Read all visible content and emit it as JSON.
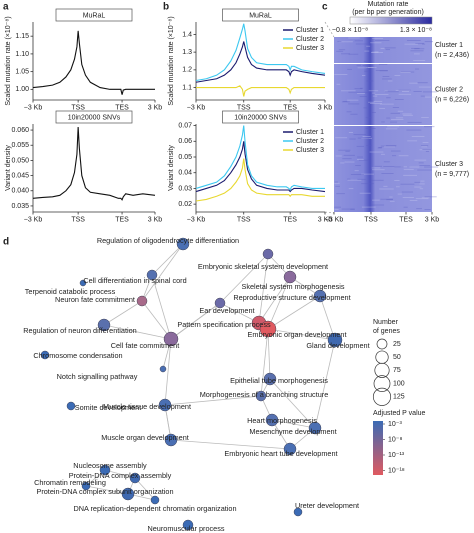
{
  "panel_labels": [
    "a",
    "b",
    "c",
    "d"
  ],
  "chart_data": [
    {
      "type": "line",
      "title": "MuRaL",
      "ylabel": "Scaled mutation rate (×10⁻⁸)",
      "x": [
        0,
        8,
        16,
        22,
        27,
        31,
        34,
        36,
        37,
        38,
        40,
        43,
        47,
        55,
        63,
        70,
        72,
        73,
        74,
        76,
        82,
        90,
        100
      ],
      "xlim": [
        0,
        100
      ],
      "xticks": [
        {
          "value": 0,
          "label": "−3 Kb"
        },
        {
          "value": 37,
          "label": "TSS"
        },
        {
          "value": 73,
          "label": "TES"
        },
        {
          "value": 100,
          "label": "3 Kb"
        }
      ],
      "ylim": [
        0.97,
        1.19
      ],
      "yticks": [
        {
          "value": 1,
          "label": "1.00"
        },
        1.05,
        {
          "value": 1.1,
          "label": "1.10"
        },
        1.15
      ],
      "series": [
        {
          "color": "#111111",
          "values": [
            1.005,
            1.008,
            1.012,
            1.02,
            1.035,
            1.055,
            1.085,
            1.12,
            1.165,
            1.13,
            1.07,
            1.04,
            1.02,
            1.005,
            1.0,
            1.0,
            1.0,
            0.985,
            0.998,
            1.0,
            1.0,
            1.0,
            1.0
          ]
        }
      ]
    },
    {
      "type": "line",
      "title": "10in20000 SNVs",
      "ylabel": "Variant density",
      "x": [
        0,
        8,
        16,
        22,
        27,
        31,
        34,
        36,
        37,
        38,
        40,
        43,
        47,
        55,
        63,
        70,
        72,
        73,
        74,
        76,
        82,
        90,
        100
      ],
      "xlim": [
        0,
        100
      ],
      "xticks": [
        {
          "value": 0,
          "label": "−3 Kb"
        },
        {
          "value": 37,
          "label": "TSS"
        },
        {
          "value": 73,
          "label": "TES"
        },
        {
          "value": 100,
          "label": "3 Kb"
        }
      ],
      "ylim": [
        0.033,
        0.062
      ],
      "yticks": [
        0.035,
        {
          "value": 0.04,
          "label": "0.040"
        },
        0.045,
        {
          "value": 0.05,
          "label": "0.050"
        },
        0.055,
        {
          "value": 0.06,
          "label": "0.060"
        }
      ],
      "series": [
        {
          "color": "#111111",
          "values": [
            0.0375,
            0.0378,
            0.038,
            0.0385,
            0.04,
            0.042,
            0.046,
            0.052,
            0.061,
            0.054,
            0.045,
            0.041,
            0.0395,
            0.039,
            0.0385,
            0.0375,
            0.0375,
            0.037,
            0.038,
            0.039,
            0.0385,
            0.039,
            0.0385
          ]
        }
      ]
    },
    {
      "type": "line",
      "title": "MuRaL",
      "ylabel": "Scaled mutation rate (×10⁻⁸)",
      "x": [
        0,
        8,
        16,
        22,
        27,
        31,
        34,
        36,
        37,
        38,
        40,
        43,
        47,
        55,
        63,
        70,
        72,
        73,
        74,
        76,
        82,
        90,
        100
      ],
      "xlim": [
        0,
        100
      ],
      "xticks": [
        {
          "value": 0,
          "label": "−3 Kb"
        },
        {
          "value": 37,
          "label": "TSS"
        },
        {
          "value": 73,
          "label": "TES"
        },
        {
          "value": 100,
          "label": "3 Kb"
        }
      ],
      "ylim": [
        1.03,
        1.47
      ],
      "yticks": [
        1.1,
        1.2,
        1.3,
        1.4
      ],
      "series": [
        {
          "name": "Cluster 1",
          "color": "#1a1a6e",
          "values": [
            1.13,
            1.14,
            1.15,
            1.17,
            1.2,
            1.24,
            1.29,
            1.33,
            1.36,
            1.33,
            1.27,
            1.23,
            1.21,
            1.2,
            1.2,
            1.2,
            1.19,
            1.17,
            1.19,
            1.2,
            1.19,
            1.18,
            1.17
          ]
        },
        {
          "name": "Cluster 2",
          "color": "#3cc8f0",
          "values": [
            1.14,
            1.15,
            1.17,
            1.2,
            1.25,
            1.31,
            1.38,
            1.43,
            1.46,
            1.42,
            1.32,
            1.27,
            1.24,
            1.23,
            1.23,
            1.23,
            1.22,
            1.2,
            1.22,
            1.22,
            1.2,
            1.19,
            1.18
          ]
        },
        {
          "name": "Cluster 3",
          "color": "#e8d830",
          "values": [
            1.1,
            1.1,
            1.1,
            1.1,
            1.1,
            1.1,
            1.11,
            1.09,
            1.05,
            1.08,
            1.09,
            1.1,
            1.1,
            1.1,
            1.1,
            1.1,
            1.09,
            1.07,
            1.09,
            1.1,
            1.1,
            1.1,
            1.1
          ]
        }
      ]
    },
    {
      "type": "line",
      "title": "10in20000 SNVs",
      "ylabel": "Variant density",
      "x": [
        0,
        8,
        16,
        22,
        27,
        31,
        34,
        36,
        37,
        38,
        40,
        43,
        47,
        55,
        63,
        70,
        72,
        73,
        74,
        76,
        82,
        90,
        100
      ],
      "xlim": [
        0,
        100
      ],
      "xticks": [
        {
          "value": 0,
          "label": "−3 Kb"
        },
        {
          "value": 37,
          "label": "TSS"
        },
        {
          "value": 73,
          "label": "TES"
        },
        {
          "value": 100,
          "label": "3 Kb"
        }
      ],
      "ylim": [
        0.015,
        0.071
      ],
      "yticks": [
        0.02,
        0.03,
        0.04,
        0.05,
        0.06,
        0.07
      ],
      "series": [
        {
          "name": "Cluster 1",
          "color": "#1a1a6e",
          "values": [
            0.028,
            0.03,
            0.032,
            0.035,
            0.04,
            0.045,
            0.05,
            0.055,
            0.06,
            0.052,
            0.042,
            0.036,
            0.032,
            0.03,
            0.029,
            0.029,
            0.029,
            0.028,
            0.029,
            0.03,
            0.03,
            0.029,
            0.028
          ]
        },
        {
          "name": "Cluster 2",
          "color": "#3cc8f0",
          "values": [
            0.03,
            0.032,
            0.034,
            0.038,
            0.044,
            0.05,
            0.057,
            0.064,
            0.07,
            0.06,
            0.045,
            0.038,
            0.034,
            0.032,
            0.031,
            0.031,
            0.03,
            0.029,
            0.031,
            0.032,
            0.031,
            0.03,
            0.03
          ]
        },
        {
          "name": "Cluster 3",
          "color": "#e8d830",
          "values": [
            0.022,
            0.023,
            0.025,
            0.027,
            0.03,
            0.034,
            0.038,
            0.043,
            0.049,
            0.042,
            0.033,
            0.029,
            0.027,
            0.026,
            0.026,
            0.026,
            0.026,
            0.025,
            0.026,
            0.026,
            0.026,
            0.025,
            0.025
          ]
        }
      ]
    }
  ],
  "heatmap": {
    "title_lines": [
      "Mutation rate",
      "(per bp per generation)"
    ],
    "colorbar_labels": [
      "−0.8 × 10⁻⁸",
      "1.3 × 10⁻⁸"
    ],
    "colors": [
      "#ffffff",
      "#2a2aa0"
    ],
    "clusters": [
      {
        "name": "Cluster 1",
        "n": "(n = 2,436)"
      },
      {
        "name": "Cluster 2",
        "n": "(n = 6,226)"
      },
      {
        "name": "Cluster 3",
        "n": "(n = 9,777)"
      }
    ],
    "xtick_labels": [
      "−3 Kb",
      "TSS",
      "TES",
      "3 Kb"
    ]
  },
  "network": {
    "nodes": [
      {
        "label": "Regulation of oligodendrocyte differentiation",
        "color": "#4a6fb3"
      },
      {
        "label": "Embryonic skeletal system development",
        "color": "#6b6aa8"
      },
      {
        "label": "Cell differentiation in spinal cord",
        "color": "#5470b0"
      },
      {
        "label": "Terpenoid catabolic process",
        "color": "#3b6bb5"
      },
      {
        "label": "Skeletal system morphogenesis",
        "color": "#8a6a9c"
      },
      {
        "label": "Neuron fate commitment",
        "color": "#a86a8a"
      },
      {
        "label": "Reproductive structure development",
        "color": "#5470b0"
      },
      {
        "label": "Ear development",
        "color": "#6b6aa8"
      },
      {
        "label": "Regulation of neuron differentiation",
        "color": "#5a70ad"
      },
      {
        "label": "Pattern specification process",
        "color": "#d05a6a"
      },
      {
        "label": "Embryonic organ development",
        "color": "#e05a60"
      },
      {
        "label": "Cell fate commitment",
        "color": "#8a6a9c"
      },
      {
        "label": "Gland development",
        "color": "#3f69b0"
      },
      {
        "label": "Chromosome condensation",
        "color": "#3b6bb5"
      },
      {
        "label": "Notch signalling pathway",
        "color": "#4a6fb3"
      },
      {
        "label": "Epithelial tube morphogenesis",
        "color": "#5a70ad"
      },
      {
        "label": "Morphogenesis of a branching structure",
        "color": "#5a70ad"
      },
      {
        "label": "Somite development",
        "color": "#3b6bb5"
      },
      {
        "label": "Muscle tissue development",
        "color": "#4a6fb3"
      },
      {
        "label": "Heart morphogenesis",
        "color": "#5470b0"
      },
      {
        "label": "Mesenchyme development",
        "color": "#4a6fb3"
      },
      {
        "label": "Muscle organ development",
        "color": "#4a6fb3"
      },
      {
        "label": "Embryonic heart tube development",
        "color": "#4a6fb3"
      },
      {
        "label": "Nucleosome assembly",
        "color": "#3b6bb5"
      },
      {
        "label": "Protein-DNA complex assembly",
        "color": "#3f69b0"
      },
      {
        "label": "Chromatin remodeling",
        "color": "#3b6bb5"
      },
      {
        "label": "Protein-DNA complex subunit organization",
        "color": "#3f69b0"
      },
      {
        "label": "DNA replication-dependent chromatin organization",
        "color": "#3b6bb5"
      },
      {
        "label": "Ureter development",
        "color": "#3b6bb5"
      },
      {
        "label": "Neuromuscular process",
        "color": "#3b6bb5"
      }
    ],
    "size_legend": {
      "title_lines": [
        "Number",
        "of genes"
      ],
      "values": [
        25,
        50,
        75,
        100,
        125
      ]
    },
    "color_legend": {
      "title": "Adjusted P value",
      "labels": [
        "10⁻³",
        "10⁻⁸",
        "10⁻¹³",
        "10⁻¹⁸"
      ],
      "colors": [
        "#3b6bb5",
        "#e05a60"
      ]
    }
  }
}
